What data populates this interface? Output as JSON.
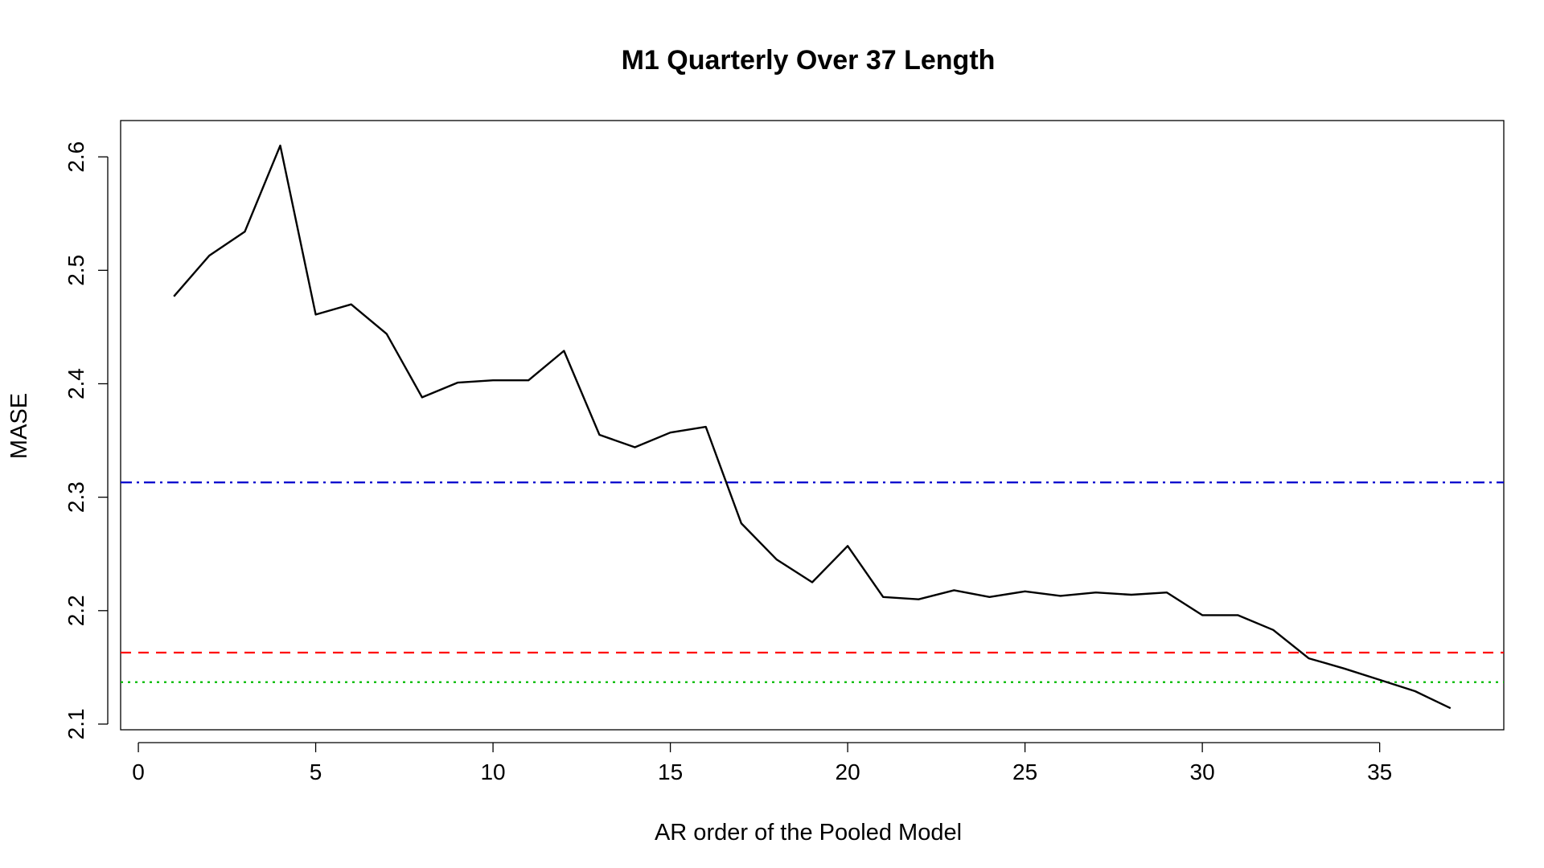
{
  "chart_data": {
    "type": "line",
    "title": "M1 Quarterly Over 37 Length",
    "xlabel": "AR order of the Pooled Model",
    "ylabel": "MASE",
    "xlim": [
      -0.5,
      38.5
    ],
    "ylim": [
      2.095,
      2.632
    ],
    "x_ticks": [
      0,
      5,
      10,
      15,
      20,
      25,
      30,
      35
    ],
    "y_ticks": [
      2.1,
      2.2,
      2.3,
      2.4,
      2.5,
      2.6
    ],
    "grid": false,
    "series": [
      {
        "color": "#000000",
        "style": "solid",
        "x": [
          1,
          2,
          3,
          4,
          5,
          6,
          7,
          8,
          9,
          10,
          11,
          12,
          13,
          14,
          15,
          16,
          17,
          18,
          19,
          20,
          21,
          22,
          23,
          24,
          25,
          26,
          27,
          28,
          29,
          30,
          31,
          32,
          33,
          34,
          35,
          36,
          37
        ],
        "y": [
          2.477,
          2.513,
          2.534,
          2.61,
          2.461,
          2.47,
          2.444,
          2.388,
          2.401,
          2.403,
          2.403,
          2.429,
          2.355,
          2.344,
          2.357,
          2.362,
          2.277,
          2.245,
          2.225,
          2.257,
          2.212,
          2.21,
          2.218,
          2.212,
          2.217,
          2.213,
          2.216,
          2.214,
          2.216,
          2.196,
          2.196,
          2.183,
          2.158,
          2.149,
          2.139,
          2.129,
          2.114
        ]
      }
    ],
    "reference_lines": [
      {
        "y": 2.313,
        "color": "#0000cc",
        "style": "dashdot"
      },
      {
        "y": 2.163,
        "color": "#ff0000",
        "style": "dashed"
      },
      {
        "y": 2.137,
        "color": "#00bb00",
        "style": "dotted"
      }
    ]
  }
}
